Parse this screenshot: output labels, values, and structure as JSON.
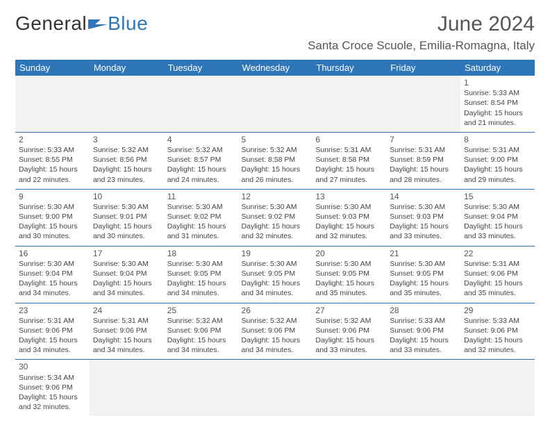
{
  "brand": {
    "part1": "General",
    "part2": "Blue"
  },
  "title": "June 2024",
  "location": "Santa Croce Scuole, Emilia-Romagna, Italy",
  "colors": {
    "header_bg": "#2f76b8",
    "header_text": "#ffffff",
    "rule": "#2f76b8",
    "empty_bg": "#f2f2f2",
    "text": "#444444",
    "title": "#555555"
  },
  "weekdays": [
    "Sunday",
    "Monday",
    "Tuesday",
    "Wednesday",
    "Thursday",
    "Friday",
    "Saturday"
  ],
  "first_weekday_index": 6,
  "days": [
    {
      "n": 1,
      "sunrise": "5:33 AM",
      "sunset": "8:54 PM",
      "daylight": "15 hours and 21 minutes."
    },
    {
      "n": 2,
      "sunrise": "5:33 AM",
      "sunset": "8:55 PM",
      "daylight": "15 hours and 22 minutes."
    },
    {
      "n": 3,
      "sunrise": "5:32 AM",
      "sunset": "8:56 PM",
      "daylight": "15 hours and 23 minutes."
    },
    {
      "n": 4,
      "sunrise": "5:32 AM",
      "sunset": "8:57 PM",
      "daylight": "15 hours and 24 minutes."
    },
    {
      "n": 5,
      "sunrise": "5:32 AM",
      "sunset": "8:58 PM",
      "daylight": "15 hours and 26 minutes."
    },
    {
      "n": 6,
      "sunrise": "5:31 AM",
      "sunset": "8:58 PM",
      "daylight": "15 hours and 27 minutes."
    },
    {
      "n": 7,
      "sunrise": "5:31 AM",
      "sunset": "8:59 PM",
      "daylight": "15 hours and 28 minutes."
    },
    {
      "n": 8,
      "sunrise": "5:31 AM",
      "sunset": "9:00 PM",
      "daylight": "15 hours and 29 minutes."
    },
    {
      "n": 9,
      "sunrise": "5:30 AM",
      "sunset": "9:00 PM",
      "daylight": "15 hours and 30 minutes."
    },
    {
      "n": 10,
      "sunrise": "5:30 AM",
      "sunset": "9:01 PM",
      "daylight": "15 hours and 30 minutes."
    },
    {
      "n": 11,
      "sunrise": "5:30 AM",
      "sunset": "9:02 PM",
      "daylight": "15 hours and 31 minutes."
    },
    {
      "n": 12,
      "sunrise": "5:30 AM",
      "sunset": "9:02 PM",
      "daylight": "15 hours and 32 minutes."
    },
    {
      "n": 13,
      "sunrise": "5:30 AM",
      "sunset": "9:03 PM",
      "daylight": "15 hours and 32 minutes."
    },
    {
      "n": 14,
      "sunrise": "5:30 AM",
      "sunset": "9:03 PM",
      "daylight": "15 hours and 33 minutes."
    },
    {
      "n": 15,
      "sunrise": "5:30 AM",
      "sunset": "9:04 PM",
      "daylight": "15 hours and 33 minutes."
    },
    {
      "n": 16,
      "sunrise": "5:30 AM",
      "sunset": "9:04 PM",
      "daylight": "15 hours and 34 minutes."
    },
    {
      "n": 17,
      "sunrise": "5:30 AM",
      "sunset": "9:04 PM",
      "daylight": "15 hours and 34 minutes."
    },
    {
      "n": 18,
      "sunrise": "5:30 AM",
      "sunset": "9:05 PM",
      "daylight": "15 hours and 34 minutes."
    },
    {
      "n": 19,
      "sunrise": "5:30 AM",
      "sunset": "9:05 PM",
      "daylight": "15 hours and 34 minutes."
    },
    {
      "n": 20,
      "sunrise": "5:30 AM",
      "sunset": "9:05 PM",
      "daylight": "15 hours and 35 minutes."
    },
    {
      "n": 21,
      "sunrise": "5:30 AM",
      "sunset": "9:05 PM",
      "daylight": "15 hours and 35 minutes."
    },
    {
      "n": 22,
      "sunrise": "5:31 AM",
      "sunset": "9:06 PM",
      "daylight": "15 hours and 35 minutes."
    },
    {
      "n": 23,
      "sunrise": "5:31 AM",
      "sunset": "9:06 PM",
      "daylight": "15 hours and 34 minutes."
    },
    {
      "n": 24,
      "sunrise": "5:31 AM",
      "sunset": "9:06 PM",
      "daylight": "15 hours and 34 minutes."
    },
    {
      "n": 25,
      "sunrise": "5:32 AM",
      "sunset": "9:06 PM",
      "daylight": "15 hours and 34 minutes."
    },
    {
      "n": 26,
      "sunrise": "5:32 AM",
      "sunset": "9:06 PM",
      "daylight": "15 hours and 34 minutes."
    },
    {
      "n": 27,
      "sunrise": "5:32 AM",
      "sunset": "9:06 PM",
      "daylight": "15 hours and 33 minutes."
    },
    {
      "n": 28,
      "sunrise": "5:33 AM",
      "sunset": "9:06 PM",
      "daylight": "15 hours and 33 minutes."
    },
    {
      "n": 29,
      "sunrise": "5:33 AM",
      "sunset": "9:06 PM",
      "daylight": "15 hours and 32 minutes."
    },
    {
      "n": 30,
      "sunrise": "5:34 AM",
      "sunset": "9:06 PM",
      "daylight": "15 hours and 32 minutes."
    }
  ],
  "labels": {
    "sunrise": "Sunrise:",
    "sunset": "Sunset:",
    "daylight": "Daylight:"
  }
}
